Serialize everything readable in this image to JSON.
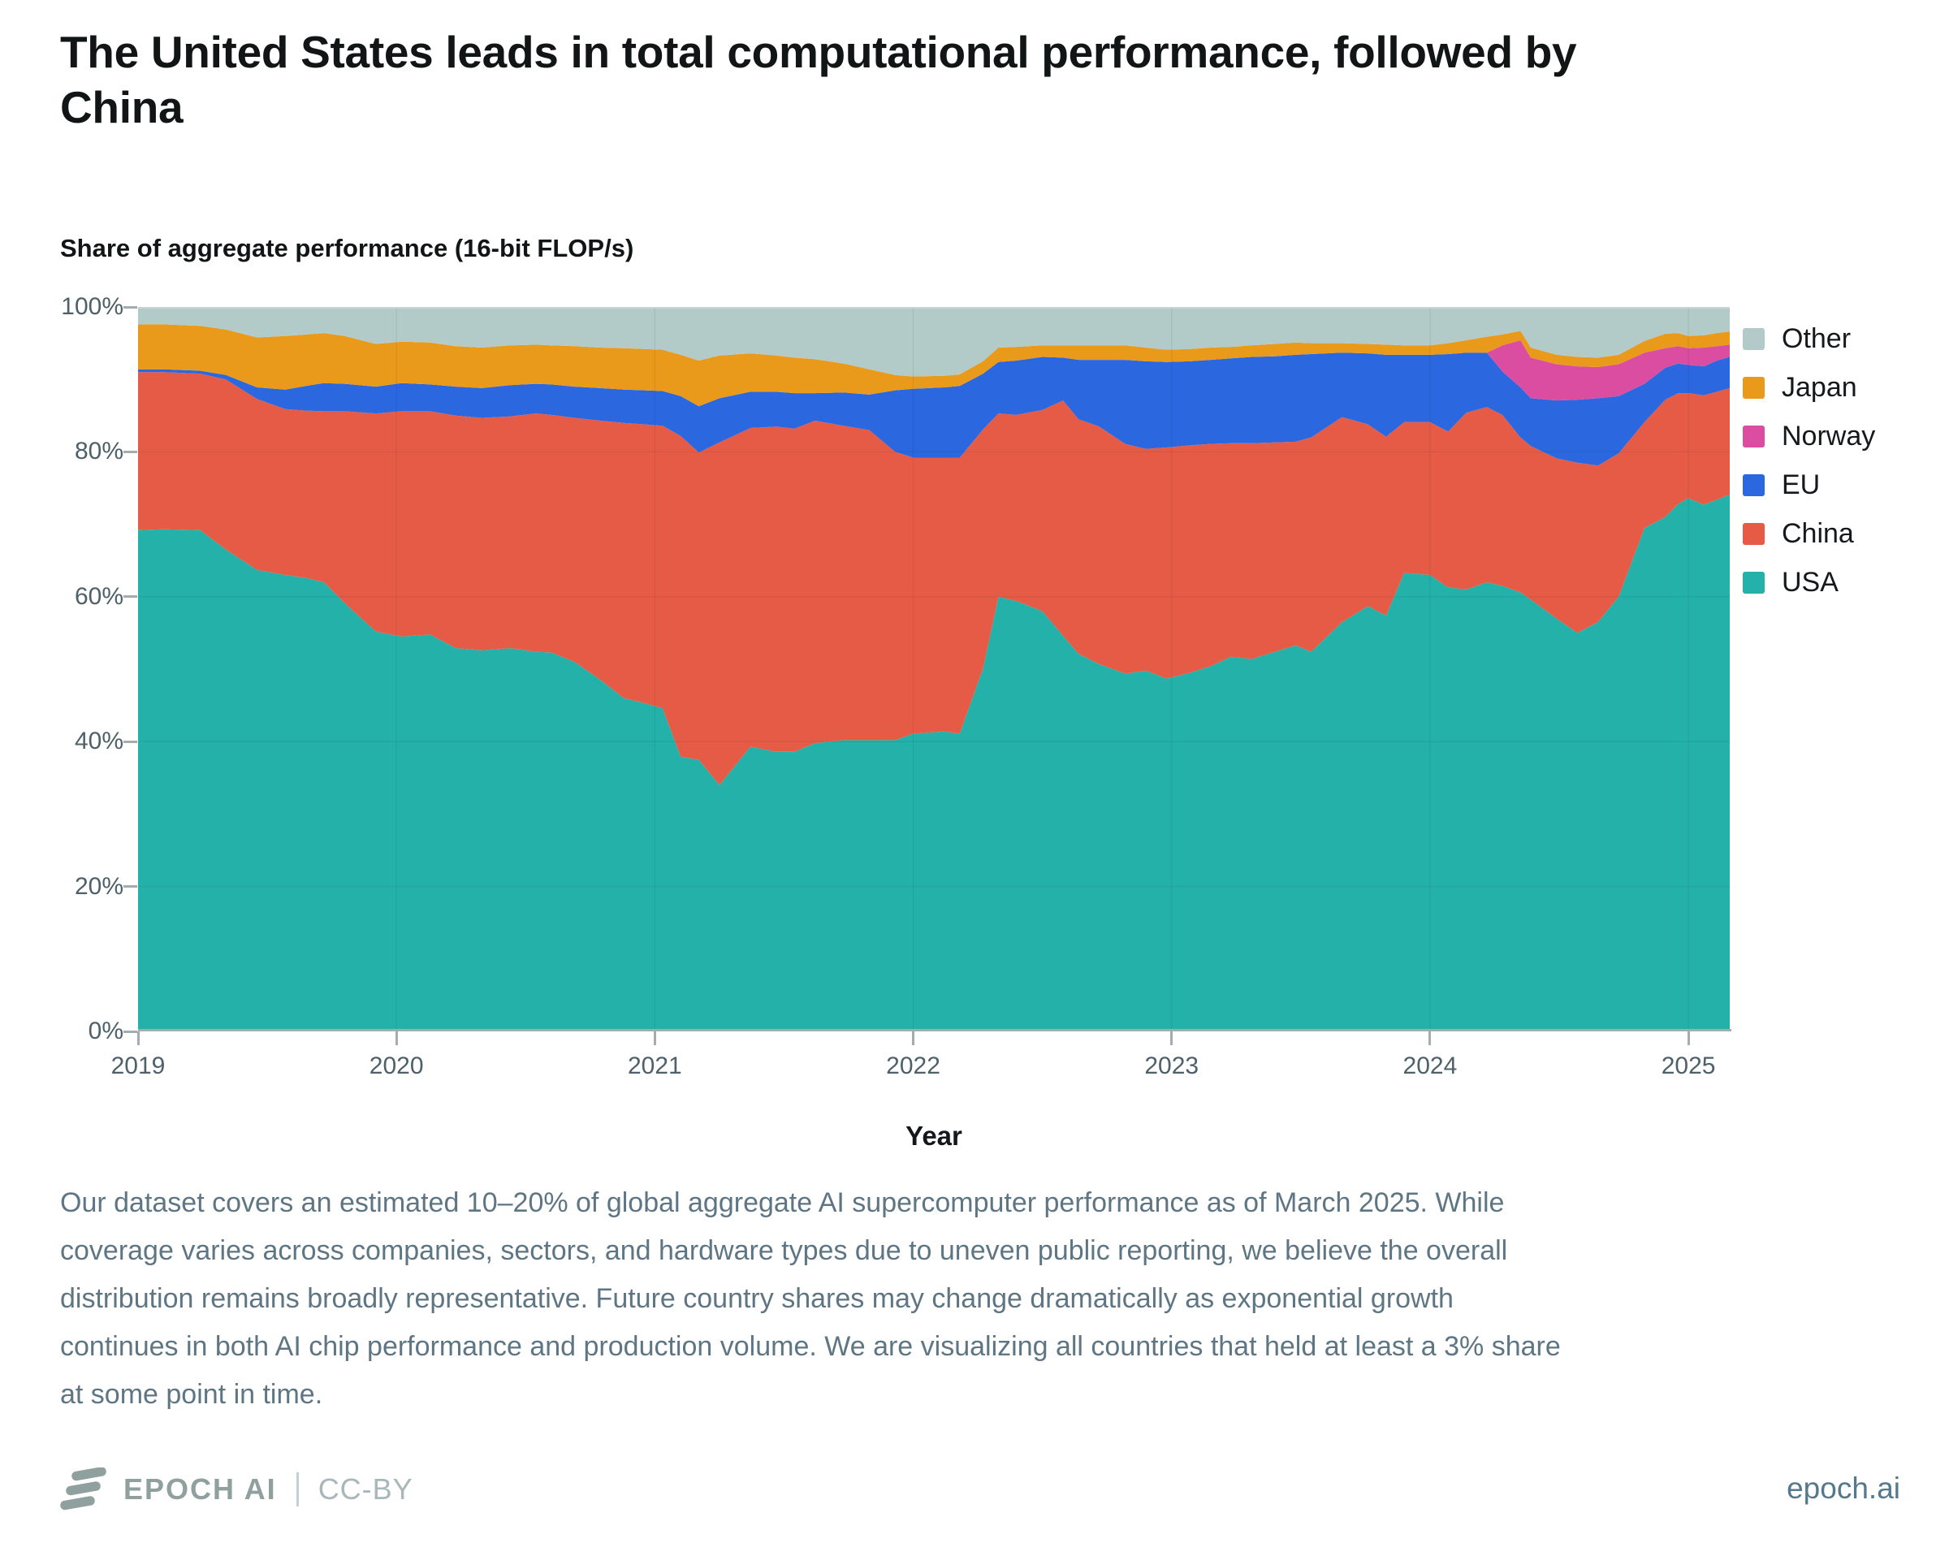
{
  "title": "The United States leads in total computational performance, followed by\nChina",
  "chart": {
    "y_axis_title": "Share of aggregate performance (16-bit FLOP/s)",
    "x_axis_name": "Year",
    "x_ticks": [
      "2019",
      "2020",
      "2021",
      "2022",
      "2023",
      "2024",
      "2025"
    ],
    "y_ticks": [
      "100%",
      "80%",
      "60%",
      "40%",
      "20%",
      "0%"
    ]
  },
  "chart_data": {
    "type": "area",
    "stacked": true,
    "title": "Share of aggregate performance (16-bit FLOP/s)",
    "xlabel": "Year",
    "ylabel": "Share of aggregate performance (16-bit FLOP/s)",
    "xlim": [
      2019.0,
      2025.16
    ],
    "ylim": [
      0,
      100
    ],
    "grid": true,
    "legend_position": "right",
    "legend_order_top_to_bottom": [
      "Other",
      "Japan",
      "Norway",
      "EU",
      "China",
      "USA"
    ],
    "x": [
      2019.0,
      2019.1,
      2019.24,
      2019.34,
      2019.46,
      2019.57,
      2019.65,
      2019.72,
      2019.8,
      2019.92,
      2020.02,
      2020.13,
      2020.23,
      2020.33,
      2020.44,
      2020.54,
      2020.6,
      2020.69,
      2020.79,
      2020.88,
      2020.96,
      2021.03,
      2021.1,
      2021.17,
      2021.25,
      2021.37,
      2021.47,
      2021.54,
      2021.62,
      2021.73,
      2021.83,
      2021.93,
      2022.0,
      2022.12,
      2022.18,
      2022.27,
      2022.33,
      2022.4,
      2022.5,
      2022.58,
      2022.64,
      2022.72,
      2022.82,
      2022.9,
      2022.98,
      2023.07,
      2023.15,
      2023.23,
      2023.31,
      2023.4,
      2023.48,
      2023.54,
      2023.66,
      2023.76,
      2023.83,
      2023.9,
      2024.0,
      2024.07,
      2024.14,
      2024.22,
      2024.28,
      2024.35,
      2024.39,
      2024.49,
      2024.57,
      2024.65,
      2024.73,
      2024.83,
      2024.91,
      2024.96,
      2025.0,
      2025.06,
      2025.11,
      2025.16
    ],
    "series": [
      {
        "name": "USA",
        "color": "#24b1a9",
        "values": [
          69.2,
          69.3,
          69.2,
          66.5,
          63.7,
          63.0,
          62.6,
          62.0,
          59.1,
          55.2,
          54.5,
          54.8,
          52.9,
          52.6,
          52.9,
          52.4,
          52.3,
          51.0,
          48.5,
          46.0,
          45.3,
          44.6,
          37.9,
          37.5,
          34.0,
          39.3,
          38.6,
          38.6,
          39.8,
          40.2,
          40.2,
          40.2,
          41.1,
          41.4,
          41.1,
          50.1,
          60.0,
          59.4,
          58.0,
          54.6,
          52.1,
          50.7,
          49.4,
          49.8,
          48.7,
          49.5,
          50.4,
          51.7,
          51.4,
          52.4,
          53.3,
          52.4,
          56.5,
          58.7,
          57.4,
          63.3,
          63.0,
          61.3,
          61.0,
          62.0,
          61.5,
          60.6,
          59.6,
          57.0,
          55.0,
          56.5,
          60.0,
          69.5,
          71.0,
          72.8,
          73.6,
          72.7,
          73.4,
          74.1
        ]
      },
      {
        "name": "China",
        "color": "#e65b46",
        "values": [
          21.8,
          21.7,
          21.6,
          23.5,
          23.6,
          22.9,
          23.1,
          23.6,
          26.5,
          30.1,
          31.1,
          30.8,
          32.1,
          32.1,
          32.0,
          32.9,
          32.8,
          33.7,
          35.8,
          38.0,
          38.5,
          39.0,
          44.3,
          42.4,
          47.3,
          44.0,
          44.9,
          44.6,
          44.5,
          43.4,
          42.8,
          39.8,
          38.1,
          37.8,
          38.1,
          33.0,
          25.3,
          25.7,
          27.8,
          32.5,
          32.4,
          32.8,
          31.7,
          30.6,
          31.9,
          31.4,
          30.7,
          29.5,
          29.8,
          28.9,
          28.1,
          29.6,
          28.3,
          25.1,
          24.7,
          20.8,
          21.1,
          21.5,
          24.4,
          24.2,
          23.6,
          21.4,
          21.2,
          22.1,
          23.5,
          21.6,
          19.8,
          14.6,
          16.2,
          15.3,
          14.5,
          15.1,
          14.9,
          14.7
        ]
      },
      {
        "name": "EU",
        "color": "#2b67df",
        "values": [
          0.4,
          0.4,
          0.4,
          0.6,
          1.6,
          2.7,
          3.4,
          3.9,
          3.8,
          3.7,
          3.9,
          3.7,
          4.0,
          4.1,
          4.3,
          4.1,
          4.2,
          4.3,
          4.5,
          4.6,
          4.7,
          4.8,
          5.5,
          6.4,
          6.1,
          5.0,
          4.8,
          4.9,
          3.8,
          4.6,
          4.9,
          8.5,
          9.5,
          9.7,
          9.9,
          7.7,
          7.1,
          7.5,
          7.3,
          5.9,
          8.2,
          9.2,
          11.6,
          12.1,
          11.8,
          11.6,
          11.6,
          11.7,
          11.9,
          11.9,
          12.0,
          11.5,
          8.9,
          9.8,
          11.3,
          9.3,
          9.3,
          10.7,
          8.3,
          7.5,
          6.0,
          6.9,
          6.6,
          8.0,
          8.7,
          9.3,
          7.9,
          5.3,
          4.4,
          4.1,
          3.9,
          4.0,
          4.3,
          4.3
        ]
      },
      {
        "name": "Norway",
        "color": "#db4da0",
        "values": [
          0,
          0,
          0,
          0,
          0,
          0,
          0,
          0,
          0,
          0,
          0,
          0,
          0,
          0,
          0,
          0,
          0,
          0,
          0,
          0,
          0,
          0,
          0,
          0,
          0,
          0,
          0,
          0,
          0,
          0,
          0,
          0,
          0,
          0,
          0,
          0,
          0,
          0,
          0,
          0,
          0,
          0,
          0,
          0,
          0,
          0,
          0,
          0,
          0,
          0,
          0,
          0,
          0,
          0,
          0,
          0,
          0,
          0,
          0,
          0,
          3.6,
          6.5,
          5.6,
          5.0,
          4.6,
          4.3,
          4.4,
          4.3,
          2.7,
          2.4,
          2.3,
          2.6,
          2.0,
          1.7
        ]
      },
      {
        "name": "Japan",
        "color": "#e99a1b",
        "values": [
          6.2,
          6.2,
          6.2,
          6.3,
          6.9,
          7.4,
          7.1,
          6.9,
          6.6,
          5.9,
          5.7,
          5.8,
          5.6,
          5.6,
          5.5,
          5.4,
          5.4,
          5.6,
          5.6,
          5.7,
          5.7,
          5.7,
          5.7,
          6.3,
          5.9,
          5.3,
          5.0,
          4.9,
          4.7,
          4.0,
          3.5,
          2.1,
          1.7,
          1.6,
          1.6,
          1.7,
          2.0,
          1.9,
          1.6,
          1.7,
          2.0,
          2.0,
          2.0,
          1.9,
          1.7,
          1.7,
          1.7,
          1.6,
          1.6,
          1.7,
          1.7,
          1.5,
          1.3,
          1.3,
          1.4,
          1.3,
          1.3,
          1.5,
          1.7,
          2.2,
          1.5,
          1.3,
          1.4,
          1.3,
          1.3,
          1.3,
          1.3,
          1.6,
          2.0,
          1.8,
          1.7,
          1.7,
          1.8,
          1.8
        ]
      },
      {
        "name": "Other",
        "color": "#b2cbc9",
        "values": [
          2.4,
          2.4,
          2.6,
          3.1,
          4.2,
          4.0,
          3.8,
          3.6,
          4.0,
          5.1,
          4.8,
          4.9,
          5.4,
          5.6,
          5.3,
          5.2,
          5.3,
          5.4,
          5.6,
          5.7,
          5.8,
          5.9,
          6.6,
          7.4,
          6.7,
          6.4,
          6.7,
          7.0,
          7.2,
          7.8,
          8.6,
          9.4,
          9.6,
          9.5,
          9.3,
          7.5,
          5.6,
          5.5,
          5.3,
          5.3,
          5.3,
          5.3,
          5.3,
          5.6,
          5.9,
          5.8,
          5.6,
          5.5,
          5.3,
          5.1,
          4.9,
          5.0,
          5.0,
          5.1,
          5.2,
          5.3,
          5.3,
          5.0,
          4.6,
          4.1,
          3.8,
          3.3,
          5.6,
          6.6,
          6.9,
          7.0,
          6.6,
          4.7,
          3.7,
          3.6,
          4.0,
          3.9,
          3.6,
          3.4
        ]
      }
    ]
  },
  "footer": {
    "text": "Our dataset covers an estimated 10–20% of global aggregate AI supercomputer performance as of March 2025. While\ncoverage varies across companies, sectors, and hardware types due to uneven public reporting, we believe the overall\ndistribution remains broadly representative. Future country shares may change dramatically as exponential growth\ncontinues in both AI chip performance and production volume. We are visualizing all countries that held at least a 3% share\nat some point in time."
  },
  "branding": {
    "logo_text": "EPOCH AI",
    "license": "CC-BY",
    "site": "epoch.ai"
  }
}
